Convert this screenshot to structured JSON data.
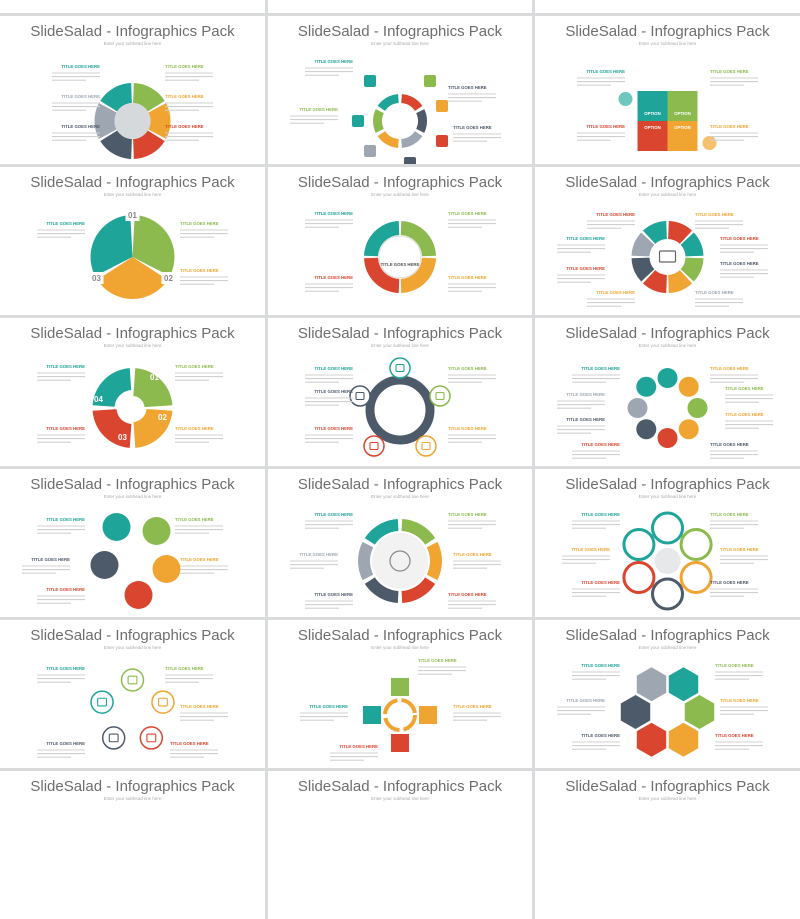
{
  "slide_title": "SlideSalad - Infographics Pack",
  "slide_subtitle": "Enter your subhead line here",
  "label_heading": "TITLE GOES HERE",
  "option_label": "OPTION",
  "center_label": "TITLE GOES HERE",
  "numbers": [
    "01",
    "02",
    "03",
    "04"
  ],
  "colors": {
    "teal": "#1fa49a",
    "green": "#8dba4f",
    "orange": "#f0a431",
    "red": "#d9452e",
    "slate": "#4d5a6a",
    "grey": "#9ea7b1",
    "lightgrey": "#d5d9dc",
    "background": "#d9dbdc"
  },
  "slides": [
    {
      "kind": "pie-ring"
    },
    {
      "kind": "ring-icons"
    },
    {
      "kind": "four-options"
    },
    {
      "kind": "three-segment"
    },
    {
      "kind": "cloud-center"
    },
    {
      "kind": "eight-ring"
    },
    {
      "kind": "spiral-four"
    },
    {
      "kind": "five-cycle"
    },
    {
      "kind": "eight-links"
    },
    {
      "kind": "swirl-five"
    },
    {
      "kind": "six-ring-head"
    },
    {
      "kind": "six-circles"
    },
    {
      "kind": "five-circles-cycle"
    },
    {
      "kind": "four-arrows"
    },
    {
      "kind": "hex-flower"
    },
    {
      "kind": "partial"
    },
    {
      "kind": "partial"
    },
    {
      "kind": "partial"
    }
  ]
}
